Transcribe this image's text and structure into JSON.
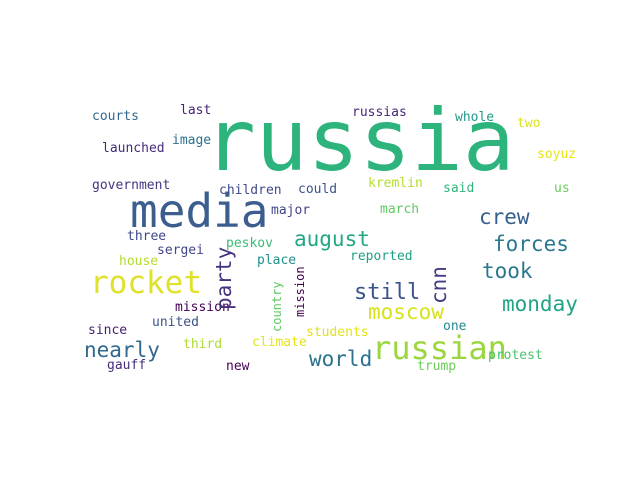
{
  "word_cloud": {
    "words": [
      {
        "text": "russia",
        "color": "#2db37c"
      },
      {
        "text": "media",
        "color": "#3b5e8f"
      },
      {
        "text": "rocket",
        "color": "#dfe12a"
      },
      {
        "text": "russian",
        "color": "#9bd63e"
      },
      {
        "text": "august",
        "color": "#22a785"
      },
      {
        "text": "crew",
        "color": "#355f8d"
      },
      {
        "text": "forces",
        "color": "#2a788e"
      },
      {
        "text": "party",
        "color": "#46337e"
      },
      {
        "text": "took",
        "color": "#2a788e"
      },
      {
        "text": "cnn",
        "color": "#433e85"
      },
      {
        "text": "still",
        "color": "#3b528b"
      },
      {
        "text": "monday",
        "color": "#20a486"
      },
      {
        "text": "moscow",
        "color": "#d8e219"
      },
      {
        "text": "nearly",
        "color": "#31688e"
      },
      {
        "text": "world",
        "color": "#2c728e"
      },
      {
        "text": "courts",
        "color": "#31688e"
      },
      {
        "text": "last",
        "color": "#482475"
      },
      {
        "text": "russias",
        "color": "#482878"
      },
      {
        "text": "whole",
        "color": "#1f9a8a"
      },
      {
        "text": "two",
        "color": "#dde318"
      },
      {
        "text": "image",
        "color": "#2d718e"
      },
      {
        "text": "launched",
        "color": "#472c7a"
      },
      {
        "text": "soyuz",
        "color": "#e5e419"
      },
      {
        "text": "government",
        "color": "#46337f"
      },
      {
        "text": "children",
        "color": "#3e4c8a"
      },
      {
        "text": "could",
        "color": "#3b528b"
      },
      {
        "text": "kremlin",
        "color": "#b5de2b"
      },
      {
        "text": "said",
        "color": "#31b57b"
      },
      {
        "text": "us",
        "color": "#6ccd5a"
      },
      {
        "text": "major",
        "color": "#414487"
      },
      {
        "text": "march",
        "color": "#5ec962"
      },
      {
        "text": "three",
        "color": "#3f4889"
      },
      {
        "text": "sergei",
        "color": "#404688"
      },
      {
        "text": "peskov",
        "color": "#3bbb75"
      },
      {
        "text": "reported",
        "color": "#1fa088"
      },
      {
        "text": "house",
        "color": "#b2dd2d"
      },
      {
        "text": "place",
        "color": "#21918c"
      },
      {
        "text": "country",
        "color": "#5ec962"
      },
      {
        "text": "mission",
        "color": "#440154"
      },
      {
        "text": "united",
        "color": "#3b528b"
      },
      {
        "text": "since",
        "color": "#481f70"
      },
      {
        "text": "students",
        "color": "#e2e418"
      },
      {
        "text": "one",
        "color": "#23898e"
      },
      {
        "text": "third",
        "color": "#addc30"
      },
      {
        "text": "climate",
        "color": "#e5e419"
      },
      {
        "text": "protest",
        "color": "#4ac16d"
      },
      {
        "text": "gauff",
        "color": "#472d7b"
      },
      {
        "text": "new",
        "color": "#440154"
      },
      {
        "text": "trump",
        "color": "#6ccd5a"
      },
      {
        "text": "coast",
        "color": "#27808e"
      }
    ]
  }
}
